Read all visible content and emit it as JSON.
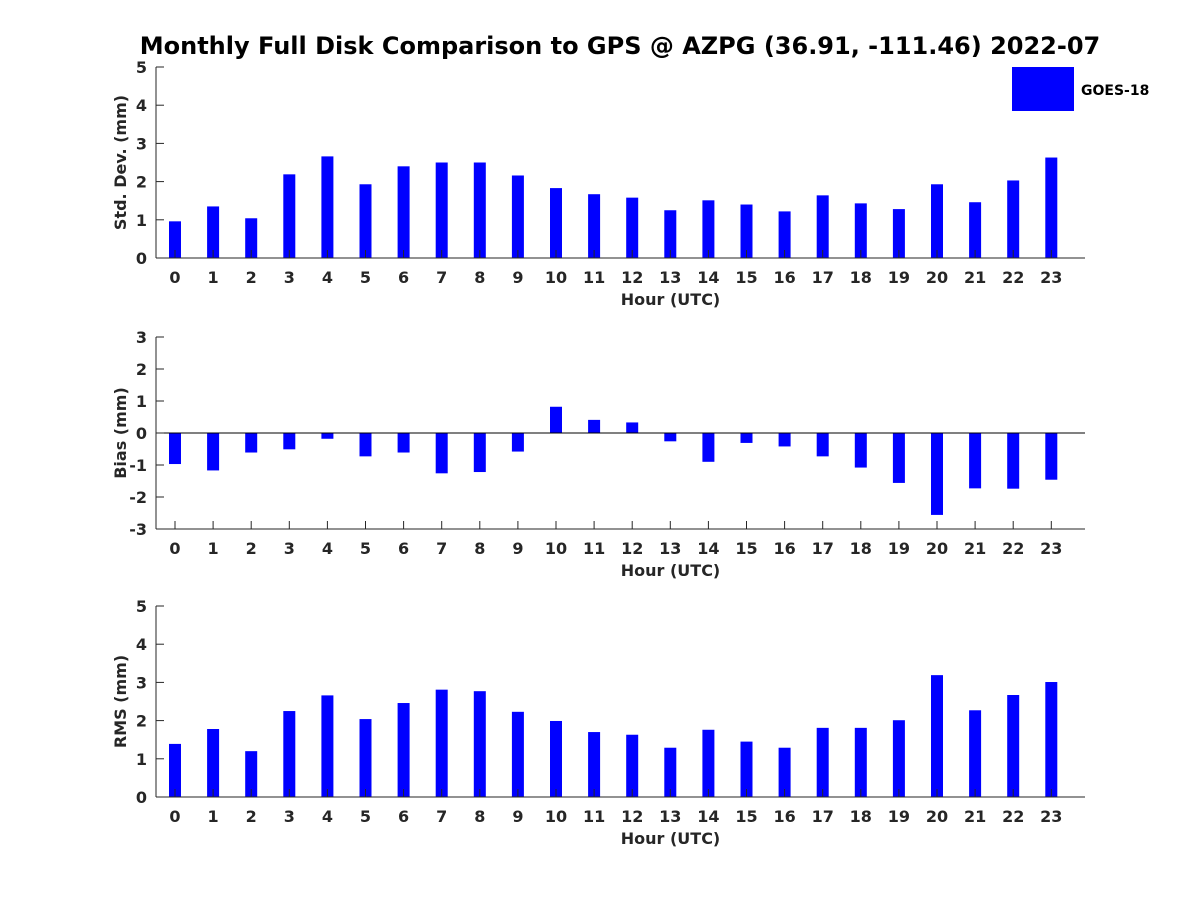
{
  "title": "Monthly Full Disk Comparison to GPS @ AZPG (36.91, -111.46) 2022-07",
  "legend": {
    "label": "GOES-18",
    "placement": "top-right",
    "color": "#0000ff"
  },
  "chart_data": [
    {
      "type": "bar",
      "ylabel": "Std. Dev. (mm)",
      "xlabel": "Hour (UTC)",
      "ylim": [
        0,
        5
      ],
      "yticks": [
        "0",
        "1",
        "2",
        "3",
        "4",
        "5"
      ],
      "categories": [
        "0",
        "1",
        "2",
        "3",
        "4",
        "5",
        "6",
        "7",
        "8",
        "9",
        "10",
        "11",
        "12",
        "13",
        "14",
        "15",
        "16",
        "17",
        "18",
        "19",
        "20",
        "21",
        "22",
        "23"
      ],
      "series": [
        {
          "name": "GOES-18",
          "color": "#0000ff",
          "values": [
            0.96,
            1.35,
            1.04,
            2.19,
            2.66,
            1.93,
            2.4,
            2.5,
            2.5,
            2.16,
            1.83,
            1.67,
            1.58,
            1.25,
            1.51,
            1.4,
            1.22,
            1.64,
            1.43,
            1.28,
            1.93,
            1.46,
            2.03,
            2.63
          ]
        }
      ],
      "grid": false
    },
    {
      "type": "bar",
      "ylabel": "Bias (mm)",
      "xlabel": "Hour (UTC)",
      "ylim": [
        -3,
        3
      ],
      "yticks": [
        "-3",
        "-2",
        "-1",
        "0",
        "1",
        "2",
        "3"
      ],
      "categories": [
        "0",
        "1",
        "2",
        "3",
        "4",
        "5",
        "6",
        "7",
        "8",
        "9",
        "10",
        "11",
        "12",
        "13",
        "14",
        "15",
        "16",
        "17",
        "18",
        "19",
        "20",
        "21",
        "22",
        "23"
      ],
      "series": [
        {
          "name": "GOES-18",
          "color": "#0000ff",
          "values": [
            -0.97,
            -1.17,
            -0.61,
            -0.51,
            -0.18,
            -0.73,
            -0.61,
            -1.26,
            -1.22,
            -0.58,
            0.82,
            0.41,
            0.33,
            -0.26,
            -0.9,
            -0.31,
            -0.42,
            -0.73,
            -1.08,
            -1.56,
            -2.56,
            -1.73,
            -1.74,
            -1.46
          ]
        }
      ],
      "grid": false
    },
    {
      "type": "bar",
      "ylabel": "RMS (mm)",
      "xlabel": "Hour (UTC)",
      "ylim": [
        0,
        5
      ],
      "yticks": [
        "0",
        "1",
        "2",
        "3",
        "4",
        "5"
      ],
      "categories": [
        "0",
        "1",
        "2",
        "3",
        "4",
        "5",
        "6",
        "7",
        "8",
        "9",
        "10",
        "11",
        "12",
        "13",
        "14",
        "15",
        "16",
        "17",
        "18",
        "19",
        "20",
        "21",
        "22",
        "23"
      ],
      "series": [
        {
          "name": "GOES-18",
          "color": "#0000ff",
          "values": [
            1.39,
            1.78,
            1.2,
            2.25,
            2.66,
            2.04,
            2.46,
            2.81,
            2.77,
            2.23,
            1.99,
            1.7,
            1.63,
            1.29,
            1.76,
            1.45,
            1.29,
            1.81,
            1.81,
            2.01,
            3.19,
            2.27,
            2.67,
            3.01
          ]
        }
      ],
      "grid": false
    }
  ]
}
